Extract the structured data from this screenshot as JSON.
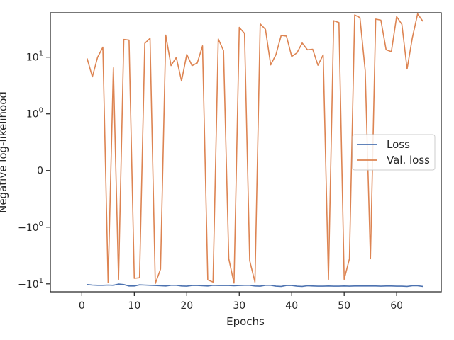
{
  "chart_data": {
    "type": "line",
    "xlabel": "Epochs",
    "ylabel": "Negative log-likelihood",
    "yscale": "symlog",
    "xlim": [
      -6.0,
      68.5
    ],
    "x_ticks": [
      0,
      10,
      20,
      30,
      40,
      50,
      60
    ],
    "y_ticks": [
      {
        "value": 10,
        "base": "10",
        "exp": "1"
      },
      {
        "value": 1,
        "base": "10",
        "exp": "0"
      },
      {
        "value": 0,
        "base": "0",
        "exp": ""
      },
      {
        "value": -1,
        "base": "−10",
        "exp": "0"
      },
      {
        "value": -10,
        "base": "−10",
        "exp": "1"
      }
    ],
    "legend_position": "center-right",
    "grid": false,
    "series": [
      {
        "name": "Loss",
        "color": "#4c72b0",
        "x": [
          1,
          2,
          3,
          4,
          5,
          6,
          7,
          8,
          9,
          10,
          11,
          12,
          13,
          14,
          15,
          16,
          17,
          18,
          19,
          20,
          21,
          22,
          23,
          24,
          25,
          26,
          27,
          28,
          29,
          30,
          31,
          32,
          33,
          34,
          35,
          36,
          37,
          38,
          39,
          40,
          41,
          42,
          43,
          44,
          45,
          46,
          47,
          48,
          49,
          50,
          51,
          52,
          53,
          54,
          55,
          56,
          57,
          58,
          59,
          60,
          61,
          62,
          63,
          64,
          65
        ],
        "y": [
          -10.3,
          -10.5,
          -10.6,
          -10.6,
          -10.5,
          -10.6,
          -10.1,
          -10.3,
          -10.9,
          -10.9,
          -10.4,
          -10.5,
          -10.6,
          -10.7,
          -10.8,
          -10.9,
          -10.6,
          -10.6,
          -10.9,
          -11.0,
          -10.7,
          -10.7,
          -10.8,
          -10.9,
          -10.6,
          -10.7,
          -10.7,
          -10.7,
          -10.8,
          -10.7,
          -10.6,
          -10.6,
          -10.9,
          -11.0,
          -10.6,
          -10.6,
          -11.0,
          -11.1,
          -10.7,
          -10.7,
          -11.0,
          -11.1,
          -10.8,
          -10.9,
          -11.0,
          -11.0,
          -10.9,
          -11.0,
          -11.0,
          -10.9,
          -11.0,
          -10.9,
          -10.9,
          -10.9,
          -10.9,
          -10.9,
          -11.0,
          -10.9,
          -10.9,
          -11.0,
          -11.0,
          -11.1,
          -10.8,
          -10.8,
          -11.1
        ]
      },
      {
        "name": "Val. loss",
        "color": "#dd8452",
        "x": [
          1,
          2,
          3,
          4,
          5,
          6,
          7,
          8,
          9,
          10,
          11,
          12,
          13,
          14,
          15,
          16,
          17,
          18,
          19,
          20,
          21,
          22,
          23,
          24,
          25,
          26,
          27,
          28,
          29,
          30,
          31,
          32,
          33,
          34,
          35,
          36,
          37,
          38,
          39,
          40,
          41,
          42,
          43,
          44,
          45,
          46,
          47,
          48,
          49,
          50,
          51,
          52,
          53,
          54,
          55,
          56,
          57,
          58,
          59,
          60,
          61,
          62,
          63,
          64,
          65
        ],
        "y": [
          9.5,
          4.5,
          10,
          15,
          -9.5,
          6.5,
          -8.3,
          20.5,
          20,
          -8,
          -7.8,
          17.5,
          21.5,
          -9.9,
          -5.5,
          24.5,
          7.1,
          9.9,
          3.8,
          11.2,
          7.1,
          7.9,
          15.8,
          -8.5,
          -9.3,
          21,
          13,
          -3.6,
          -9.7,
          33.6,
          26.2,
          -3.9,
          -9.3,
          38.7,
          31.1,
          7.3,
          11.1,
          24.2,
          23.6,
          10.3,
          11.9,
          17.8,
          13.5,
          13.8,
          7.2,
          11,
          -8.3,
          44,
          41,
          -8.3,
          -3.6,
          55.6,
          50,
          5.8,
          -3.6,
          47,
          45,
          13.5,
          12.5,
          52,
          38,
          6.2,
          22,
          58,
          43
        ]
      }
    ]
  }
}
